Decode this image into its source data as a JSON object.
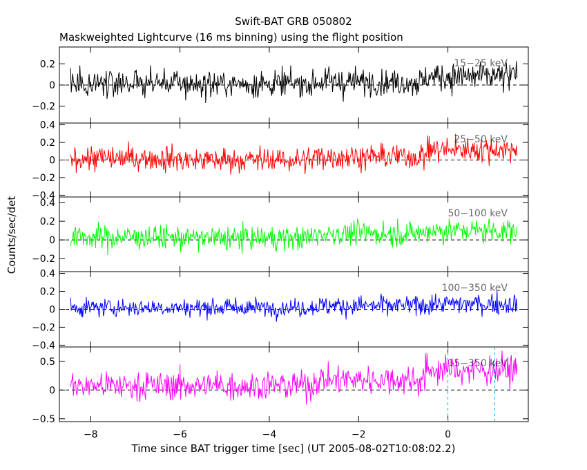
{
  "chart_data": {
    "type": "line",
    "title": "Swift-BAT GRB 050802",
    "subtitle": "Maskweighted Lightcurve (16 ms binning) using the flight position",
    "xlabel": "Time since BAT trigger time [sec] (UT 2005-08-02T10:08:02.2)",
    "ylabel": "Counts/sec/det",
    "xlim": [
      -8.7,
      1.8
    ],
    "x_ticks": [
      -8,
      -6,
      -4,
      -2,
      0
    ],
    "x_tick_labels": [
      "−8",
      "−6",
      "−4",
      "−2",
      "0"
    ],
    "bin_width_sec": 0.016,
    "x_range": [
      -8.45,
      1.55
    ],
    "grid": false,
    "annotations": [
      {
        "type": "vline",
        "x": 0.0,
        "panel": "bottom",
        "color": "#00aaff",
        "style": "dashed"
      },
      {
        "type": "vline",
        "x": 1.05,
        "panel": "bottom",
        "color": "#00aaff",
        "style": "dashed"
      }
    ],
    "panels": [
      {
        "name": "15-25 keV",
        "color": "#000000",
        "ylim": [
          -0.36,
          0.36
        ],
        "y_ticks": [
          -0.2,
          0,
          0.2
        ],
        "y_tick_labels": [
          "−0.2",
          "0",
          "0.2"
        ],
        "band_label": "15−25 keV",
        "segments": [
          {
            "x_start": -8.45,
            "x_end": -6.0,
            "mean": 0.02,
            "noise_sd": 0.095
          },
          {
            "x_start": -6.0,
            "x_end": -3.0,
            "mean": 0.01,
            "noise_sd": 0.09
          },
          {
            "x_start": -3.0,
            "x_end": -0.5,
            "mean": 0.03,
            "noise_sd": 0.09
          },
          {
            "x_start": -0.5,
            "x_end": 1.55,
            "mean": 0.08,
            "noise_sd": 0.1
          }
        ]
      },
      {
        "name": "25-50 keV",
        "color": "#ff0000",
        "ylim": [
          -0.42,
          0.42
        ],
        "y_ticks": [
          -0.4,
          -0.2,
          0,
          0.2,
          0.4
        ],
        "y_tick_labels": [
          "−0.4",
          "−0.2",
          "0",
          "0.2",
          "0.4"
        ],
        "band_label": "25−50 keV",
        "segments": [
          {
            "x_start": -8.45,
            "x_end": -6.0,
            "mean": 0.02,
            "noise_sd": 0.1
          },
          {
            "x_start": -6.0,
            "x_end": -3.0,
            "mean": 0.0,
            "noise_sd": 0.1
          },
          {
            "x_start": -3.0,
            "x_end": -0.5,
            "mean": 0.04,
            "noise_sd": 0.1
          },
          {
            "x_start": -0.5,
            "x_end": 1.55,
            "mean": 0.12,
            "noise_sd": 0.1
          }
        ]
      },
      {
        "name": "50-100 keV",
        "color": "#00ff00",
        "ylim": [
          -0.34,
          0.46
        ],
        "y_ticks": [
          -0.2,
          0,
          0.2,
          0.4
        ],
        "y_tick_labels": [
          "−0.2",
          "0",
          "0.2",
          "0.4"
        ],
        "band_label": "50−100 keV",
        "segments": [
          {
            "x_start": -8.45,
            "x_end": -6.0,
            "mean": 0.03,
            "noise_sd": 0.09
          },
          {
            "x_start": -6.0,
            "x_end": -3.0,
            "mean": 0.02,
            "noise_sd": 0.09
          },
          {
            "x_start": -3.0,
            "x_end": -0.5,
            "mean": 0.07,
            "noise_sd": 0.09
          },
          {
            "x_start": -0.5,
            "x_end": 1.55,
            "mean": 0.1,
            "noise_sd": 0.09
          }
        ]
      },
      {
        "name": "100-350 keV",
        "color": "#0000ff",
        "ylim": [
          -0.42,
          0.42
        ],
        "y_ticks": [
          -0.4,
          -0.2,
          0,
          0.2,
          0.4
        ],
        "y_tick_labels": [
          "−0.4",
          "−0.2",
          "0",
          "0.2",
          "0.4"
        ],
        "band_label": "100−350 keV",
        "segments": [
          {
            "x_start": -8.45,
            "x_end": -6.0,
            "mean": 0.02,
            "noise_sd": 0.07
          },
          {
            "x_start": -6.0,
            "x_end": -3.0,
            "mean": 0.02,
            "noise_sd": 0.07
          },
          {
            "x_start": -3.0,
            "x_end": -0.5,
            "mean": 0.04,
            "noise_sd": 0.08
          },
          {
            "x_start": -0.5,
            "x_end": 1.55,
            "mean": 0.06,
            "noise_sd": 0.08
          }
        ]
      },
      {
        "name": "15-350 keV",
        "color": "#ff00ff",
        "ylim": [
          -0.55,
          0.75
        ],
        "y_ticks": [
          -0.5,
          0,
          0.5
        ],
        "y_tick_labels": [
          "−0.5",
          "0",
          "0.5"
        ],
        "band_label": "15−350 keV",
        "segments": [
          {
            "x_start": -8.45,
            "x_end": -6.0,
            "mean": 0.08,
            "noise_sd": 0.18
          },
          {
            "x_start": -6.0,
            "x_end": -3.0,
            "mean": 0.08,
            "noise_sd": 0.18
          },
          {
            "x_start": -3.0,
            "x_end": -0.5,
            "mean": 0.18,
            "noise_sd": 0.18
          },
          {
            "x_start": -0.5,
            "x_end": 1.55,
            "mean": 0.35,
            "noise_sd": 0.18
          }
        ]
      }
    ]
  }
}
